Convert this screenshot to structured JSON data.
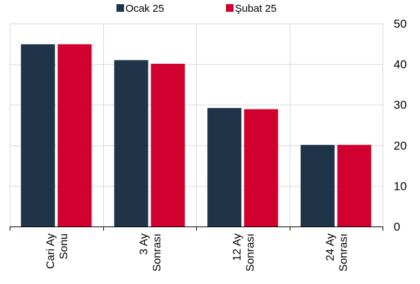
{
  "chart_data": {
    "type": "bar",
    "categories": [
      [
        "Cari Ay",
        "Sonu"
      ],
      [
        "3 Ay",
        "Sonrası"
      ],
      [
        "12 Ay",
        "Sonrası"
      ],
      [
        "24 Ay",
        "Sonrası"
      ]
    ],
    "series": [
      {
        "name": "Ocak 25",
        "color": "#1f3349",
        "values": [
          44.9,
          41.0,
          29.2,
          20.1
        ]
      },
      {
        "name": "Şubat 25",
        "color": "#d2002f",
        "values": [
          44.9,
          40.1,
          28.9,
          20.1
        ]
      }
    ],
    "ylim": [
      0,
      50
    ],
    "yticks": [
      0,
      10,
      20,
      30,
      40,
      50
    ],
    "y_axis_side": "right",
    "grid": true,
    "legend_position": "top"
  }
}
